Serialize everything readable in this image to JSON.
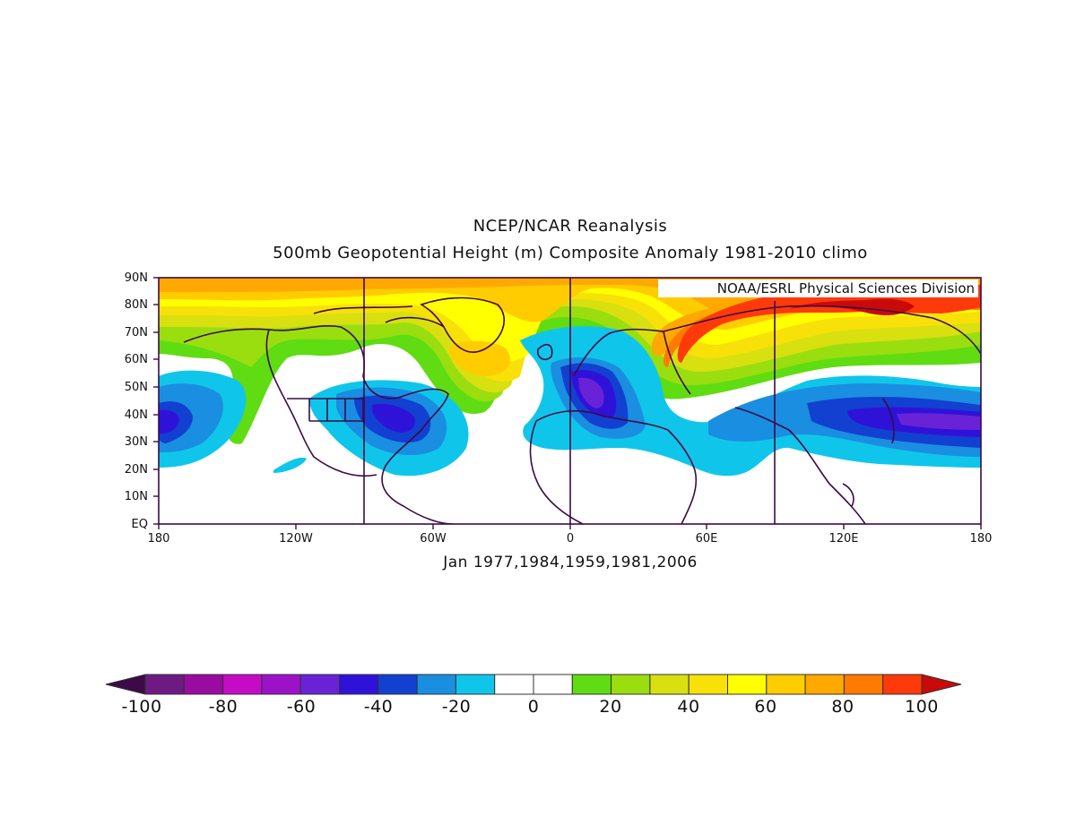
{
  "header": {
    "title": "NCEP/NCAR Reanalysis",
    "subtitle": "500mb Geopotential Height (m) Composite Anomaly 1981-2010 climo"
  },
  "credit": "NOAA/ESRL Physical Sciences Division",
  "footer": {
    "composite_years": "Jan 1977,1984,1959,1981,2006"
  },
  "axes": {
    "lat_labels": [
      "90N",
      "80N",
      "70N",
      "60N",
      "50N",
      "40N",
      "30N",
      "20N",
      "10N",
      "EQ"
    ],
    "lon_labels": [
      "180",
      "120W",
      "60W",
      "0",
      "60E",
      "120E",
      "180"
    ]
  },
  "colorbar": {
    "labels": [
      "-100",
      "-80",
      "-60",
      "-40",
      "-20",
      "0",
      "20",
      "40",
      "60",
      "80",
      "100"
    ],
    "colors": [
      "#3c0a47",
      "#6d1a82",
      "#9a0ba0",
      "#c60bc7",
      "#9b12c9",
      "#6a22d6",
      "#2f12d8",
      "#1240d0",
      "#1a8ee0",
      "#0fc6ea",
      "#ffffff",
      "#ffffff",
      "#5fdc12",
      "#9ade10",
      "#d8e010",
      "#f7e108",
      "#ffff00",
      "#ffcc00",
      "#ffa800",
      "#ff7a00",
      "#ff3a0a",
      "#c80a0a"
    ]
  },
  "chart_data": {
    "type": "heatmap",
    "title": "NCEP/NCAR Reanalysis",
    "subtitle": "500mb Geopotential Height (m) Composite Anomaly 1981-2010 climo",
    "field": "500mb geopotential height anomaly (m)",
    "lon_range": [
      -180,
      180
    ],
    "lat_range": [
      0,
      90
    ],
    "contour_interval": 10,
    "color_range": [
      -100,
      100
    ],
    "features": [
      {
        "lon": 120,
        "lat": 80,
        "value": 90
      },
      {
        "lon": 60,
        "lat": 60,
        "value": 80
      },
      {
        "lon": -30,
        "lat": 52,
        "value": 60
      },
      {
        "lon": -120,
        "lat": 85,
        "value": 60
      },
      {
        "lon": 10,
        "lat": 48,
        "value": -50
      },
      {
        "lon": -75,
        "lat": 38,
        "value": -45
      },
      {
        "lon": 145,
        "lat": 35,
        "value": -45
      },
      {
        "lon": -178,
        "lat": 40,
        "value": -40
      },
      {
        "lon": 30,
        "lat": 22,
        "value": -15
      }
    ]
  }
}
